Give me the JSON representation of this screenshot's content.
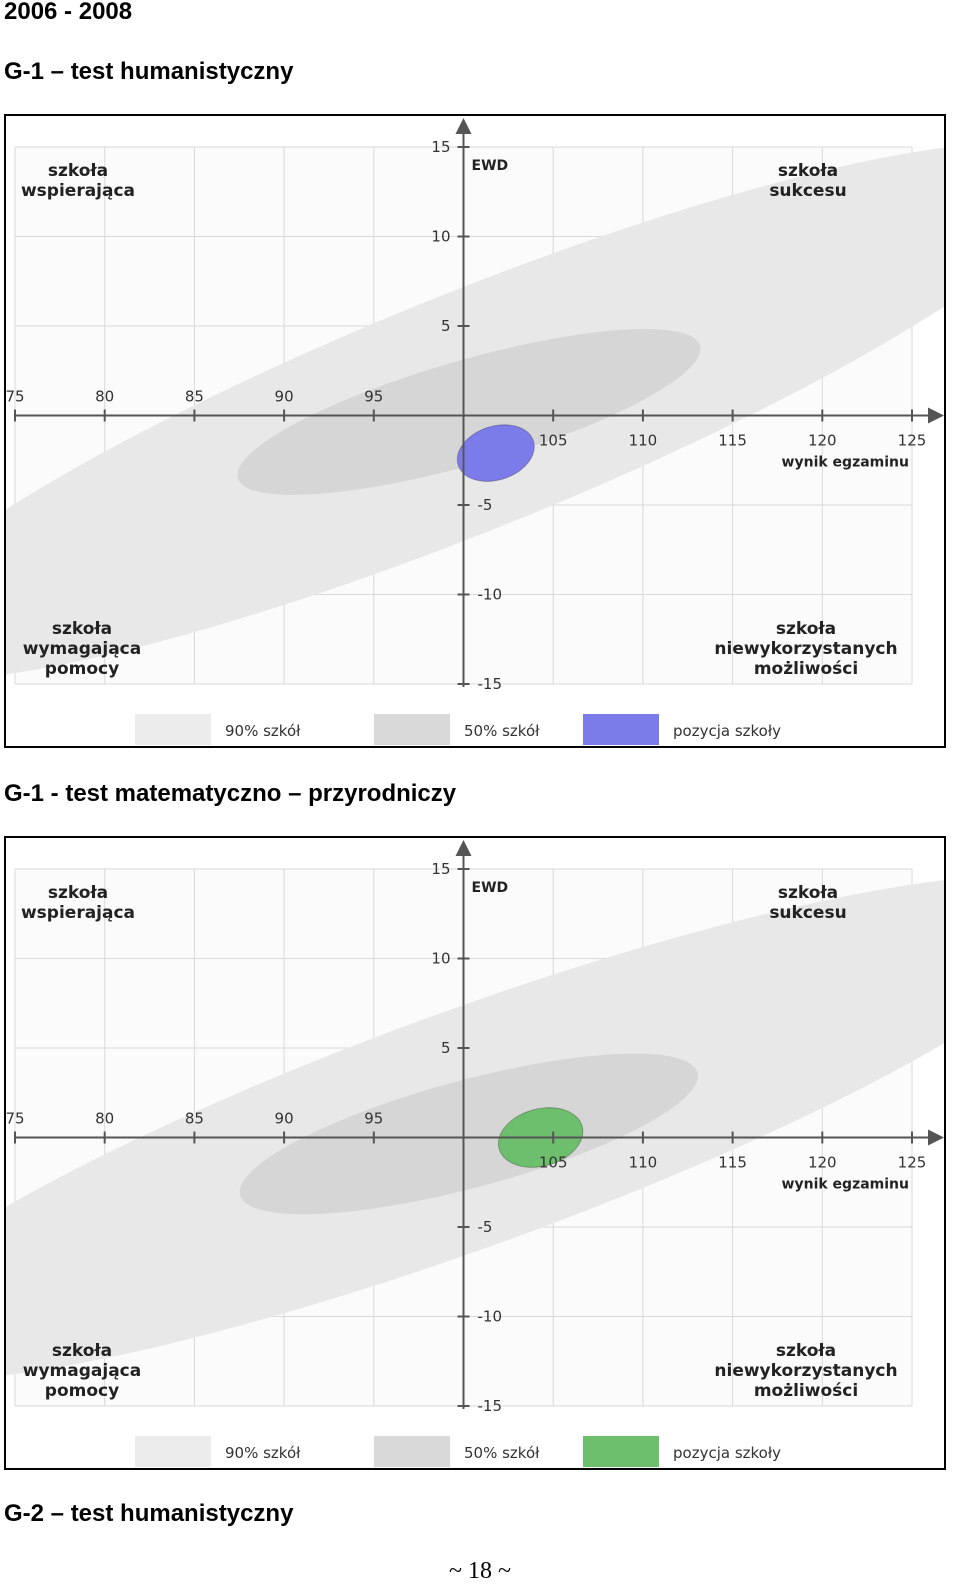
{
  "page": {
    "period": "2006 - 2008",
    "section_headings": [
      "G-1 – test humanistyczny",
      "G-1 - test matematyczno – przyrodniczy",
      "G-2 – test humanistyczny"
    ],
    "page_number": "~ 18 ~"
  },
  "chart_data": [
    {
      "type": "scatter",
      "title": "G-1 – test humanistyczny",
      "xlabel": "wynik egzaminu",
      "ylabel": "EWD",
      "xlim": [
        75,
        125
      ],
      "ylim": [
        -15,
        15
      ],
      "xticks": [
        75,
        80,
        85,
        90,
        95,
        105,
        110,
        115,
        120,
        125
      ],
      "yticks": [
        15,
        10,
        5,
        -5,
        -10,
        -15
      ],
      "grid": true,
      "quadrant_labels": {
        "top_left": [
          "szkoła",
          "wspierająca"
        ],
        "top_right": [
          "szkoła",
          "sukcesu"
        ],
        "bottom_left": [
          "szkoła",
          "wymagająca",
          "pomocy"
        ],
        "bottom_right": [
          "szkoła",
          "niewykorzystanych",
          "możliwości"
        ]
      },
      "ellipses": [
        {
          "name": "90% szkół",
          "cx": 100.3,
          "cy": 0.2,
          "rx": 36.5,
          "ry": 6.6,
          "angle_deg": 22,
          "color": "#e8e8e8"
        },
        {
          "name": "50% szkół",
          "cx": 100.3,
          "cy": 0.2,
          "rx": 13.4,
          "ry": 2.9,
          "angle_deg": 16,
          "color": "#d6d6d6"
        },
        {
          "name": "pozycja szkoły",
          "cx": 101.8,
          "cy": -2.1,
          "rx": 2.2,
          "ry": 1.5,
          "angle_deg": 18,
          "color": "#7b7bea"
        }
      ],
      "legend": [
        {
          "label": "90% szkół",
          "color": "#ececec"
        },
        {
          "label": "50% szkół",
          "color": "#d9d9d9"
        },
        {
          "label": "pozycja szkoły",
          "color": "#7b7bea"
        }
      ],
      "legend_position": "bottom"
    },
    {
      "type": "scatter",
      "title": "G-1 - test matematyczno – przyrodniczy",
      "xlabel": "wynik egzaminu",
      "ylabel": "EWD",
      "xlim": [
        75,
        125
      ],
      "ylim": [
        -15,
        15
      ],
      "xticks": [
        75,
        80,
        85,
        90,
        95,
        105,
        110,
        115,
        120,
        125
      ],
      "yticks": [
        15,
        10,
        5,
        -5,
        -10,
        -15
      ],
      "grid": true,
      "quadrant_labels": {
        "top_left": [
          "szkoła",
          "wspierająca"
        ],
        "top_right": [
          "szkoła",
          "sukcesu"
        ],
        "bottom_left": [
          "szkoła",
          "wymagająca",
          "pomocy"
        ],
        "bottom_right": [
          "szkoła",
          "niewykorzystanych",
          "możliwości"
        ]
      },
      "ellipses": [
        {
          "name": "90% szkół",
          "cx": 100.3,
          "cy": 0.5,
          "rx": 37.0,
          "ry": 6.6,
          "angle_deg": 20,
          "color": "#e8e8e8"
        },
        {
          "name": "50% szkół",
          "cx": 100.3,
          "cy": 0.2,
          "rx": 13.2,
          "ry": 3.0,
          "angle_deg": 15,
          "color": "#d6d6d6"
        },
        {
          "name": "pozycja szkoły",
          "cx": 104.3,
          "cy": 0.0,
          "rx": 2.4,
          "ry": 1.6,
          "angle_deg": 15,
          "color": "#6dbf6d"
        }
      ],
      "legend": [
        {
          "label": "90% szkół",
          "color": "#ececec"
        },
        {
          "label": "50% szkół",
          "color": "#d9d9d9"
        },
        {
          "label": "pozycja szkoły",
          "color": "#6dbf6d"
        }
      ],
      "legend_position": "bottom"
    }
  ]
}
